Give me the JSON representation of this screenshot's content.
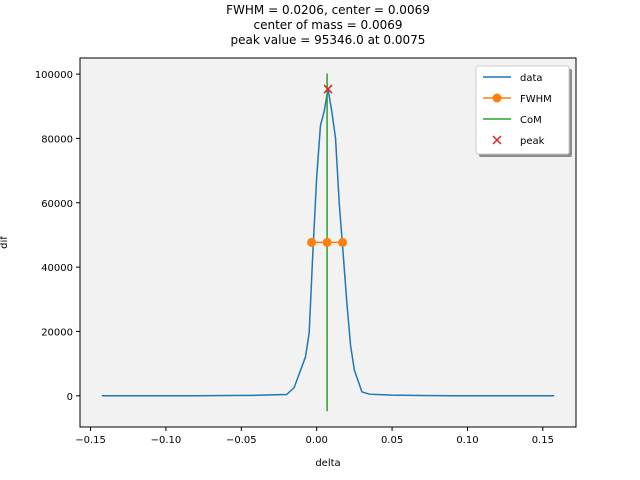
{
  "chart_data": {
    "type": "line",
    "title_lines": [
      "FWHM = 0.0206, center = 0.0069",
      "center of mass = 0.0069",
      "peak value = 95346.0 at 0.0075"
    ],
    "xlabel": "delta",
    "ylabel": "dif",
    "xlim": [
      -0.157,
      0.172
    ],
    "ylim": [
      -9700,
      105000
    ],
    "xticks": [
      -0.15,
      -0.1,
      -0.05,
      0.0,
      0.05,
      0.1,
      0.15
    ],
    "xtick_labels": [
      "−0.15",
      "−0.10",
      "−0.05",
      "0.00",
      "0.05",
      "0.10",
      "0.15"
    ],
    "yticks": [
      0,
      20000,
      40000,
      60000,
      80000,
      100000
    ],
    "ytick_labels": [
      "0",
      "20000",
      "40000",
      "60000",
      "80000",
      "100000"
    ],
    "grid": false,
    "legend_position": "top-right",
    "plot_background": "#f2f2f2",
    "series": [
      {
        "name": "data",
        "color": "#1f77b4",
        "marker": "none",
        "x": [
          -0.1425,
          -0.12,
          -0.1,
          -0.08,
          -0.06,
          -0.04,
          -0.02,
          -0.015,
          -0.0075,
          -0.005,
          -0.0025,
          0.0,
          0.0025,
          0.005,
          0.0075,
          0.01,
          0.0125,
          0.015,
          0.0175,
          0.02,
          0.0225,
          0.025,
          0.03,
          0.035,
          0.05,
          0.07,
          0.09,
          0.11,
          0.13,
          0.1575
        ],
        "y": [
          0,
          0,
          0,
          0,
          100,
          150,
          400,
          2500,
          12000,
          19500,
          45000,
          68000,
          84000,
          88500,
          95346,
          88500,
          80000,
          59500,
          44500,
          29000,
          15500,
          8000,
          1200,
          500,
          200,
          100,
          0,
          0,
          0,
          0
        ]
      },
      {
        "name": "FWHM",
        "color": "#ff7f0e",
        "marker": "circle",
        "x": [
          -0.0034,
          0.0069,
          0.0172
        ],
        "y": [
          47673,
          47673,
          47673
        ]
      },
      {
        "name": "CoM",
        "color": "#2ca02c",
        "marker": "none",
        "x": [
          0.0069,
          0.0069
        ],
        "y": [
          -4800,
          100200
        ]
      },
      {
        "name": "peak",
        "color": "#d62728",
        "marker": "x",
        "x": [
          0.0075
        ],
        "y": [
          95346
        ]
      }
    ]
  }
}
